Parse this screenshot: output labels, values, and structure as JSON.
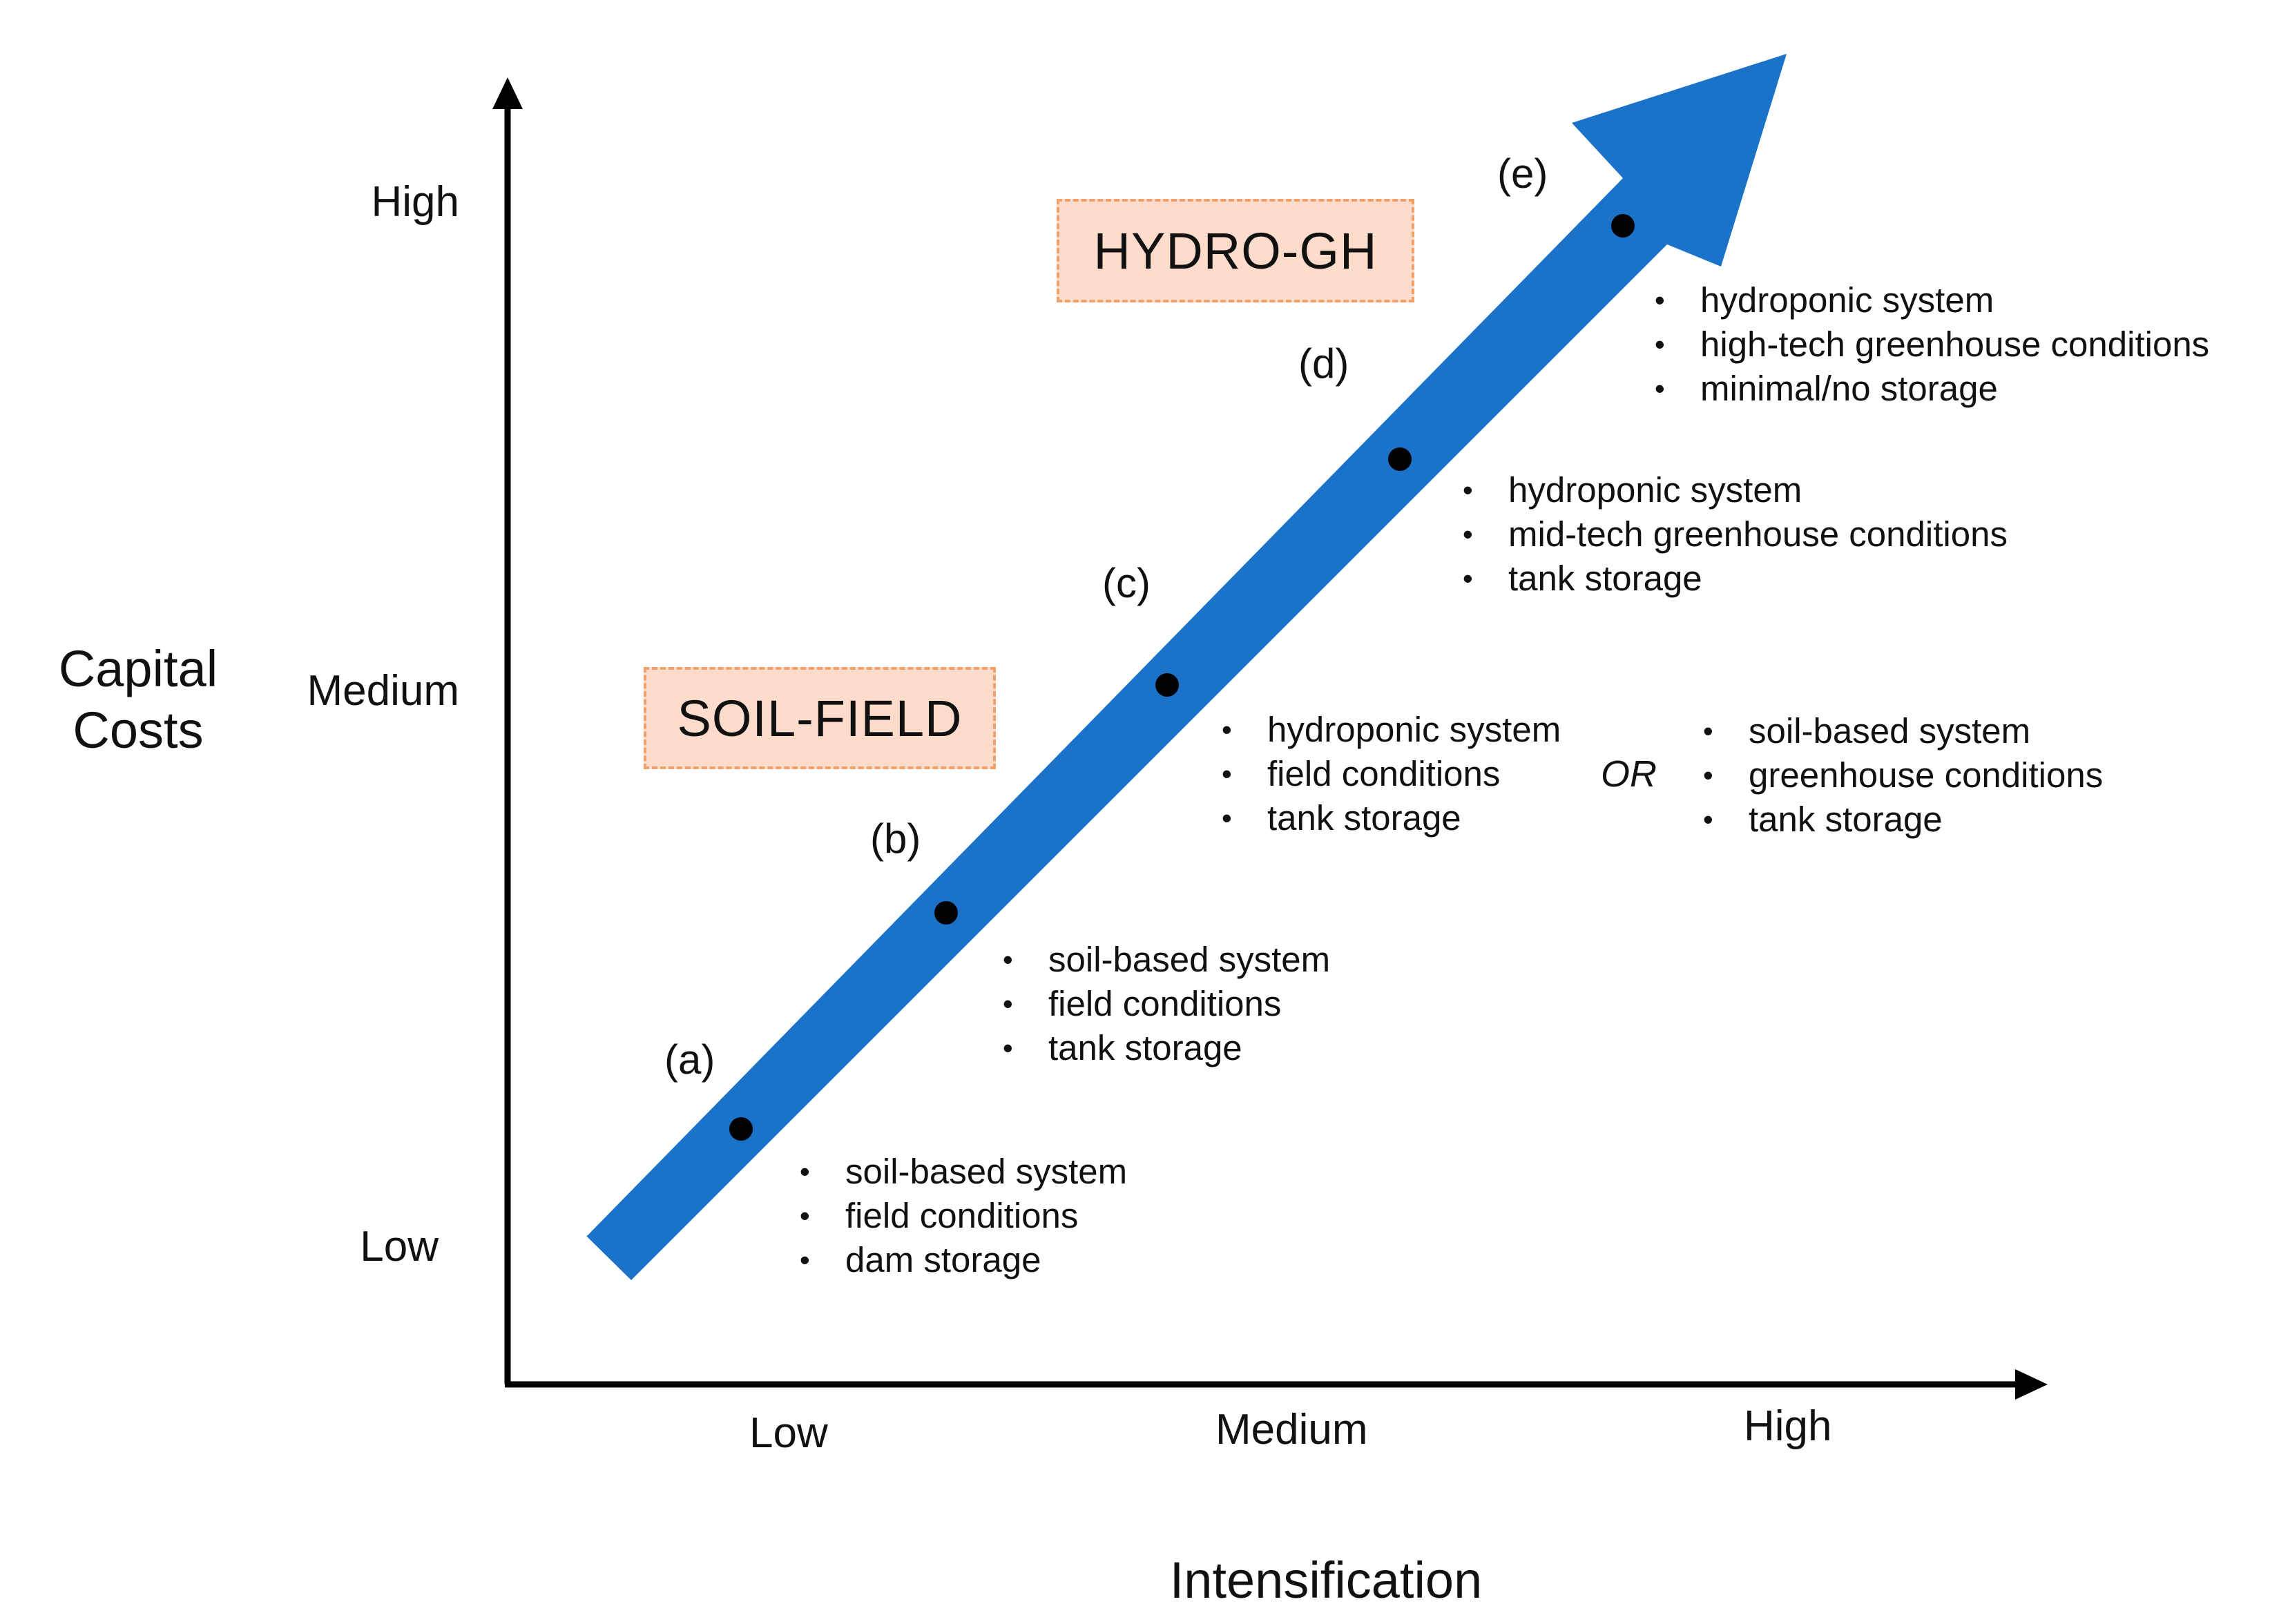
{
  "axes": {
    "y_title_line1": "Capital",
    "y_title_line2": "Costs",
    "x_title": "Intensification",
    "y_ticks": [
      "High",
      "Medium",
      "Low"
    ],
    "x_ticks": [
      "Low",
      "Medium",
      "High"
    ]
  },
  "regimes": {
    "soil_field": "SOIL-FIELD",
    "hydro_gh": "HYDRO-GH"
  },
  "stages": [
    {
      "tag": "(a)",
      "bullets": [
        "soil-based system",
        "field conditions",
        "dam storage"
      ]
    },
    {
      "tag": "(b)",
      "bullets": [
        "soil-based system",
        "field conditions",
        "tank storage"
      ]
    },
    {
      "tag": "(c)",
      "bullets": [
        "hydroponic system",
        "field conditions",
        "tank storage"
      ],
      "alt_connector": "OR",
      "alt_bullets": [
        "soil-based system",
        "greenhouse conditions",
        "tank storage"
      ]
    },
    {
      "tag": "(d)",
      "bullets": [
        "hydroponic system",
        "mid-tech greenhouse conditions",
        "tank storage"
      ]
    },
    {
      "tag": "(e)",
      "bullets": [
        "hydroponic system",
        "high-tech greenhouse conditions",
        "minimal/no storage"
      ]
    }
  ],
  "colors": {
    "arrow": "#1a73c9",
    "axis": "#000000",
    "regime_fill": "#fddccb",
    "regime_border": "#f0a06a",
    "stage_dot": "#000000"
  }
}
